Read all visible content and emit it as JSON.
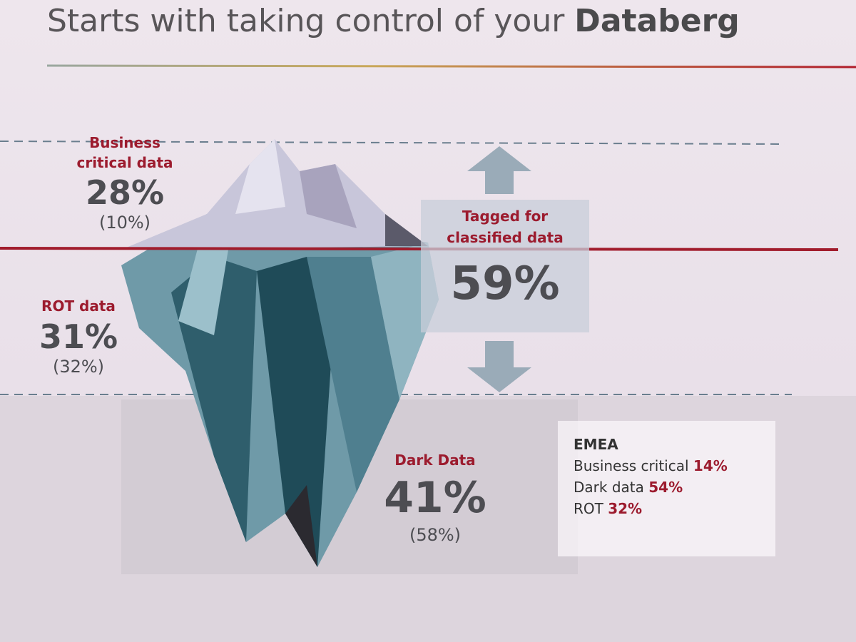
{
  "header": {
    "title": "Starts with taking control of your",
    "title_emphasis": "Databerg"
  },
  "segments": [
    {
      "label": "Business critical data",
      "value": "28%",
      "previous": "(10%)"
    },
    {
      "label": "ROT data",
      "value": "31%",
      "previous": "(32%)"
    },
    {
      "label": "Dark Data",
      "value": "41%",
      "previous": "(58%)"
    }
  ],
  "tagged": {
    "label": "Tagged for classified data",
    "value": "59%"
  },
  "emea": {
    "title": "EMEA",
    "items": [
      {
        "label": "Business critical",
        "value": "14%"
      },
      {
        "label": "Dark data",
        "value": "54%"
      },
      {
        "label": "ROT",
        "value": "32%"
      }
    ]
  }
}
